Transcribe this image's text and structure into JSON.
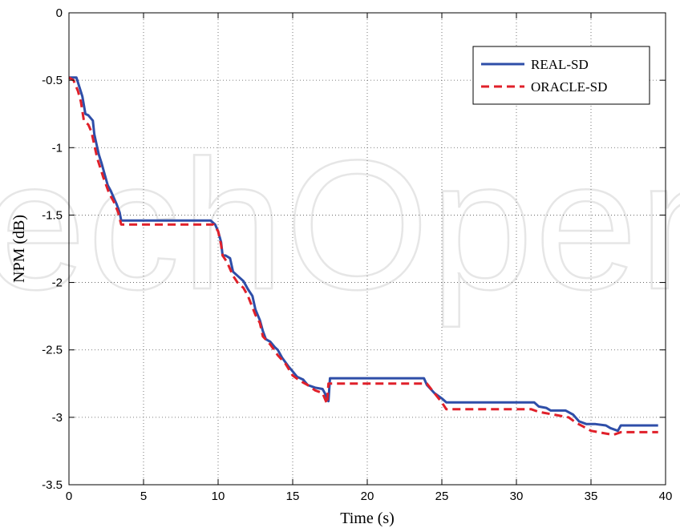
{
  "chart_data": {
    "type": "line",
    "title": "",
    "xlabel": "Time (s)",
    "ylabel": "NPM (dB)",
    "xlim": [
      0,
      40
    ],
    "ylim": [
      -3.5,
      0
    ],
    "xticks": [
      0,
      5,
      10,
      15,
      20,
      25,
      30,
      35,
      40
    ],
    "xtick_labels": [
      "0",
      "5",
      "10",
      "15",
      "20",
      "25",
      "30",
      "35",
      "40"
    ],
    "yticks": [
      0,
      -0.5,
      -1,
      -1.5,
      -2,
      -2.5,
      -3,
      -3.5
    ],
    "ytick_labels": [
      "0",
      "-0.5",
      "-1",
      "-1.5",
      "-2",
      "-2.5",
      "-3",
      "-3.5"
    ],
    "grid": true,
    "legend_position": "top-right",
    "watermark": "techOpen",
    "series": [
      {
        "name": "REAL-SD",
        "color": "#2e4ea8",
        "dash": "solid",
        "x": [
          0,
          0.5,
          0.7,
          0.9,
          1.1,
          1.3,
          1.6,
          1.7,
          1.9,
          2.0,
          2.2,
          2.4,
          2.6,
          2.8,
          3.0,
          3.2,
          3.4,
          3.5,
          5,
          9.5,
          9.8,
          10.0,
          10.2,
          10.3,
          10.5,
          10.8,
          11.0,
          11.3,
          11.7,
          12.0,
          12.3,
          12.5,
          12.8,
          13.0,
          13.2,
          13.5,
          13.8,
          14.0,
          14.3,
          14.7,
          15.0,
          15.3,
          15.7,
          16.0,
          16.5,
          17.0,
          17.2,
          17.4,
          17.5,
          20,
          23.8,
          24.0,
          24.5,
          25.0,
          25.3,
          30,
          31.2,
          31.5,
          32.0,
          32.3,
          33.3,
          33.8,
          34.2,
          34.7,
          35.3,
          36.0,
          36.3,
          36.8,
          37.0,
          38,
          39.5
        ],
        "y": [
          -0.48,
          -0.48,
          -0.55,
          -0.62,
          -0.75,
          -0.76,
          -0.8,
          -0.9,
          -1.0,
          -1.05,
          -1.12,
          -1.2,
          -1.28,
          -1.32,
          -1.37,
          -1.42,
          -1.48,
          -1.54,
          -1.54,
          -1.54,
          -1.57,
          -1.62,
          -1.7,
          -1.8,
          -1.8,
          -1.82,
          -1.92,
          -1.95,
          -1.99,
          -2.05,
          -2.1,
          -2.2,
          -2.28,
          -2.36,
          -2.42,
          -2.44,
          -2.48,
          -2.5,
          -2.56,
          -2.62,
          -2.66,
          -2.7,
          -2.72,
          -2.76,
          -2.78,
          -2.79,
          -2.83,
          -2.88,
          -2.71,
          -2.71,
          -2.71,
          -2.76,
          -2.82,
          -2.86,
          -2.89,
          -2.89,
          -2.89,
          -2.92,
          -2.93,
          -2.95,
          -2.95,
          -2.98,
          -3.03,
          -3.05,
          -3.05,
          -3.06,
          -3.08,
          -3.1,
          -3.06,
          -3.06,
          -3.06
        ]
      },
      {
        "name": "ORACLE-SD",
        "color": "#e0202a",
        "dash": "dashed",
        "x": [
          0,
          0.3,
          0.6,
          0.8,
          1.0,
          1.3,
          1.5,
          1.7,
          1.9,
          2.1,
          2.3,
          2.5,
          2.7,
          3.0,
          3.3,
          3.5,
          5,
          9.7,
          10.0,
          10.2,
          10.3,
          10.6,
          11.0,
          11.3,
          11.7,
          12.0,
          12.5,
          12.8,
          13.0,
          13.5,
          14.0,
          14.5,
          15.0,
          15.5,
          16.0,
          16.5,
          17.0,
          17.3,
          17.4,
          17.5,
          20,
          24.0,
          24.5,
          25.0,
          25.3,
          30,
          31.0,
          31.5,
          32.5,
          33.5,
          34.0,
          34.5,
          35.0,
          35.5,
          36.0,
          36.5,
          37.0,
          38,
          39.5
        ],
        "y": [
          -0.48,
          -0.5,
          -0.58,
          -0.66,
          -0.8,
          -0.83,
          -0.88,
          -0.98,
          -1.08,
          -1.15,
          -1.22,
          -1.28,
          -1.34,
          -1.4,
          -1.48,
          -1.57,
          -1.57,
          -1.57,
          -1.62,
          -1.72,
          -1.8,
          -1.85,
          -1.95,
          -2.0,
          -2.04,
          -2.1,
          -2.24,
          -2.3,
          -2.4,
          -2.46,
          -2.54,
          -2.6,
          -2.69,
          -2.73,
          -2.76,
          -2.8,
          -2.82,
          -2.9,
          -2.75,
          -2.75,
          -2.75,
          -2.75,
          -2.82,
          -2.89,
          -2.94,
          -2.94,
          -2.94,
          -2.96,
          -2.98,
          -3.0,
          -3.04,
          -3.07,
          -3.1,
          -3.11,
          -3.12,
          -3.13,
          -3.11,
          -3.11,
          -3.11
        ]
      }
    ]
  }
}
